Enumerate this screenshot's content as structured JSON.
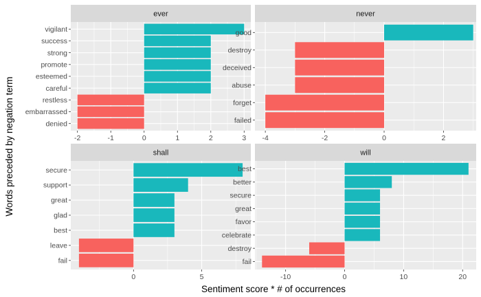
{
  "chart_data": {
    "type": "bar",
    "orientation": "horizontal",
    "xlabel": "Sentiment score * # of occurrences",
    "ylabel": "Words preceded by negation term",
    "colors": {
      "positive": "#19B8BC",
      "negative": "#F8625E",
      "panel_bg": "#EBEBEB",
      "strip_bg": "#D9D9D9",
      "grid": "#FFFFFF"
    },
    "grid": true,
    "legend": "none",
    "panels": [
      {
        "strip": "ever",
        "categories": [
          "vigilant",
          "success",
          "strong",
          "promote",
          "esteemed",
          "careful",
          "restless",
          "embarrassed",
          "denied"
        ],
        "values": [
          3,
          2,
          2,
          2,
          2,
          2,
          -2,
          -2,
          -2
        ],
        "xlim": [
          -2.2,
          3.2
        ],
        "xticks": [
          -2,
          -1,
          0,
          1,
          2,
          3
        ],
        "xtick_labels": [
          "-2",
          "-1",
          "0",
          "1",
          "2",
          "3"
        ]
      },
      {
        "strip": "never",
        "categories": [
          "good",
          "destroy",
          "deceived",
          "abuse",
          "forget",
          "failed"
        ],
        "values": [
          3,
          -3,
          -3,
          -3,
          -4,
          -4
        ],
        "xlim": [
          -4.35,
          3.1
        ],
        "xticks": [
          -4,
          -2,
          0,
          2
        ],
        "xtick_labels": [
          "-4",
          "-2",
          "0",
          "2"
        ]
      },
      {
        "strip": "shall",
        "categories": [
          "secure",
          "support",
          "great",
          "glad",
          "best",
          "leave",
          "fail"
        ],
        "values": [
          8,
          4,
          3,
          3,
          3,
          -4,
          -4
        ],
        "xlim": [
          -4.6,
          8.6
        ],
        "xticks": [
          0,
          5
        ],
        "xtick_labels": [
          "0",
          "5"
        ]
      },
      {
        "strip": "will",
        "categories": [
          "best",
          "better",
          "secure",
          "great",
          "favor",
          "celebrate",
          "destroy",
          "fail"
        ],
        "values": [
          21,
          8,
          6,
          6,
          6,
          6,
          -6,
          -14
        ],
        "xlim": [
          -15.2,
          22.3
        ],
        "xticks": [
          -10,
          0,
          10,
          20
        ],
        "xtick_labels": [
          "-10",
          "0",
          "10",
          "20"
        ]
      }
    ]
  }
}
